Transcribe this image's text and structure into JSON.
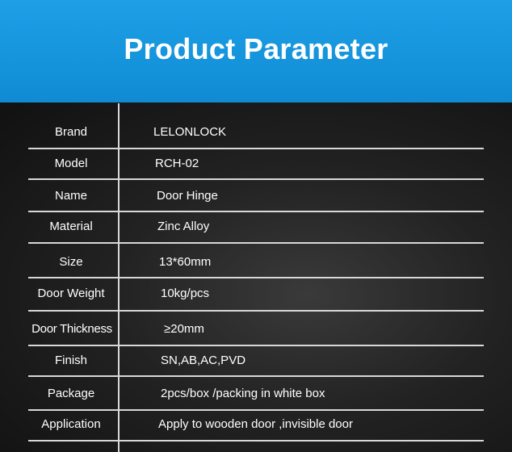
{
  "title": "Product Parameter",
  "colors": {
    "header": "#1594dc",
    "background": "#1a1a1a",
    "text": "#ffffff"
  },
  "rows": [
    {
      "label": "Brand",
      "value": "LELONLOCK"
    },
    {
      "label": "Model",
      "value": "RCH-02"
    },
    {
      "label": "Name",
      "value": "Door Hinge"
    },
    {
      "label": "Material",
      "value": "Zinc Alloy"
    },
    {
      "label": "Size",
      "value": "13*60mm"
    },
    {
      "label": "Door Weight",
      "value": "10kg/pcs"
    },
    {
      "label": "Door Thickness",
      "value": "≥20mm"
    },
    {
      "label": "Finish",
      "value": "SN,AB,AC,PVD"
    },
    {
      "label": "Package",
      "value": "2pcs/box /packing in white box"
    },
    {
      "label": "Application",
      "value": "Apply to wooden door ,invisible door"
    }
  ]
}
